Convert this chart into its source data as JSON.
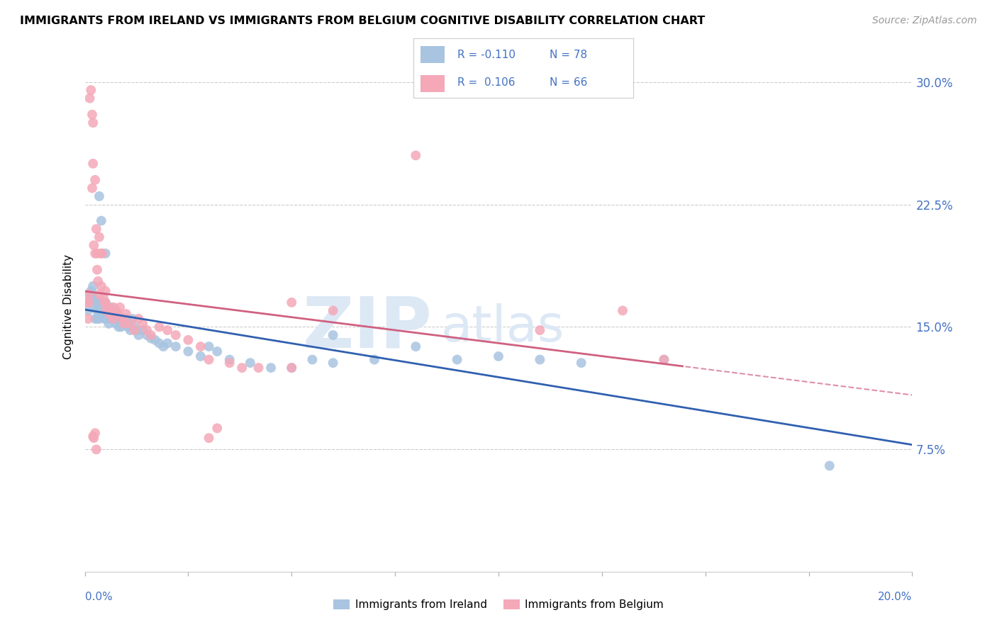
{
  "title": "IMMIGRANTS FROM IRELAND VS IMMIGRANTS FROM BELGIUM COGNITIVE DISABILITY CORRELATION CHART",
  "source": "Source: ZipAtlas.com",
  "ylabel": "Cognitive Disability",
  "yticks": [
    0.075,
    0.15,
    0.225,
    0.3
  ],
  "ytick_labels": [
    "7.5%",
    "15.0%",
    "22.5%",
    "30.0%"
  ],
  "color_ireland": "#a8c4e0",
  "color_belgium": "#f4a8b8",
  "color_ireland_line": "#3060b0",
  "color_belgium_line": "#d06080",
  "background_color": "#ffffff",
  "watermark_text": "ZIP",
  "watermark_text2": "atlas",
  "ireland_x": [
    0.0008,
    0.001,
    0.0012,
    0.0015,
    0.0018,
    0.002,
    0.0022,
    0.0025,
    0.0025,
    0.0028,
    0.003,
    0.003,
    0.0032,
    0.0035,
    0.0035,
    0.0038,
    0.004,
    0.004,
    0.0042,
    0.0045,
    0.0048,
    0.005,
    0.005,
    0.0052,
    0.0055,
    0.0058,
    0.006,
    0.006,
    0.0062,
    0.0065,
    0.0068,
    0.007,
    0.0072,
    0.0075,
    0.0078,
    0.008,
    0.0082,
    0.0085,
    0.0088,
    0.009,
    0.0095,
    0.01,
    0.0105,
    0.011,
    0.0115,
    0.012,
    0.0125,
    0.013,
    0.014,
    0.015,
    0.016,
    0.017,
    0.018,
    0.019,
    0.02,
    0.022,
    0.025,
    0.028,
    0.03,
    0.032,
    0.035,
    0.04,
    0.045,
    0.05,
    0.055,
    0.06,
    0.07,
    0.08,
    0.09,
    0.1,
    0.11,
    0.12,
    0.14,
    0.0035,
    0.004,
    0.005,
    0.18,
    0.06
  ],
  "ireland_y": [
    0.16,
    0.165,
    0.17,
    0.172,
    0.168,
    0.175,
    0.168,
    0.162,
    0.155,
    0.165,
    0.16,
    0.155,
    0.162,
    0.16,
    0.155,
    0.158,
    0.165,
    0.16,
    0.158,
    0.162,
    0.155,
    0.165,
    0.155,
    0.16,
    0.158,
    0.152,
    0.16,
    0.155,
    0.162,
    0.158,
    0.155,
    0.16,
    0.155,
    0.152,
    0.158,
    0.155,
    0.15,
    0.155,
    0.15,
    0.155,
    0.152,
    0.155,
    0.15,
    0.148,
    0.155,
    0.15,
    0.148,
    0.145,
    0.148,
    0.145,
    0.143,
    0.142,
    0.14,
    0.138,
    0.14,
    0.138,
    0.135,
    0.132,
    0.138,
    0.135,
    0.13,
    0.128,
    0.125,
    0.125,
    0.13,
    0.128,
    0.13,
    0.138,
    0.13,
    0.132,
    0.13,
    0.128,
    0.13,
    0.23,
    0.215,
    0.195,
    0.065,
    0.145
  ],
  "belgium_x": [
    0.0005,
    0.0008,
    0.001,
    0.001,
    0.0012,
    0.0015,
    0.0018,
    0.0018,
    0.002,
    0.002,
    0.0022,
    0.0025,
    0.0025,
    0.0028,
    0.003,
    0.003,
    0.0032,
    0.0035,
    0.0035,
    0.0038,
    0.004,
    0.0042,
    0.0045,
    0.0048,
    0.005,
    0.005,
    0.0052,
    0.0055,
    0.006,
    0.0065,
    0.0068,
    0.007,
    0.0075,
    0.008,
    0.0085,
    0.009,
    0.0095,
    0.01,
    0.011,
    0.012,
    0.013,
    0.014,
    0.015,
    0.016,
    0.018,
    0.02,
    0.022,
    0.025,
    0.028,
    0.03,
    0.035,
    0.038,
    0.042,
    0.05,
    0.06,
    0.08,
    0.11,
    0.14,
    0.002,
    0.0022,
    0.0025,
    0.0028,
    0.05,
    0.13,
    0.03,
    0.032
  ],
  "belgium_y": [
    0.165,
    0.155,
    0.17,
    0.165,
    0.29,
    0.295,
    0.28,
    0.235,
    0.275,
    0.25,
    0.2,
    0.24,
    0.195,
    0.21,
    0.195,
    0.185,
    0.178,
    0.205,
    0.17,
    0.195,
    0.175,
    0.195,
    0.168,
    0.165,
    0.172,
    0.165,
    0.16,
    0.162,
    0.158,
    0.16,
    0.155,
    0.162,
    0.16,
    0.158,
    0.162,
    0.155,
    0.152,
    0.158,
    0.152,
    0.148,
    0.155,
    0.152,
    0.148,
    0.145,
    0.15,
    0.148,
    0.145,
    0.142,
    0.138,
    0.13,
    0.128,
    0.125,
    0.125,
    0.165,
    0.16,
    0.255,
    0.148,
    0.13,
    0.083,
    0.082,
    0.085,
    0.075,
    0.125,
    0.16,
    0.082,
    0.088
  ]
}
